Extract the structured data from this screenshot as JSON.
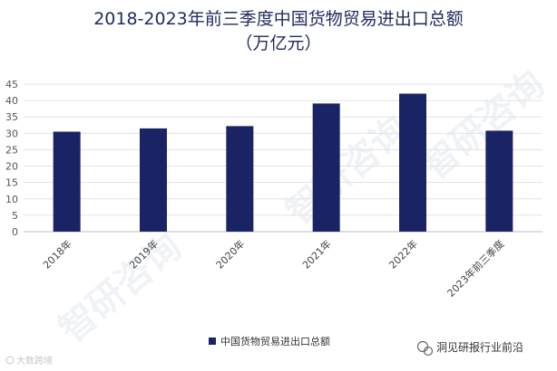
{
  "chart_data": {
    "type": "bar",
    "title": "2018-2023年前三季度中国货物贸易进出口总额",
    "subtitle": "（万亿元）",
    "categories": [
      "2018年",
      "2019年",
      "2020年",
      "2021年",
      "2022年",
      "2023年前三季度"
    ],
    "series": [
      {
        "name": "中国货物贸易进出口总额",
        "values": [
          30.5,
          31.5,
          32.2,
          39.1,
          42.1,
          30.8
        ],
        "color": "#1a2465"
      }
    ],
    "ylim": [
      0,
      45
    ],
    "yticks": [
      0,
      5,
      10,
      15,
      20,
      25,
      30,
      35,
      40,
      45
    ],
    "grid": true,
    "legend_position": "bottom"
  },
  "watermarks": {
    "brand": "智研咨询",
    "brand_small": "大数跨境"
  },
  "footer": {
    "account": "洞见研报行业前沿",
    "account_icon": "wechat-icon"
  }
}
